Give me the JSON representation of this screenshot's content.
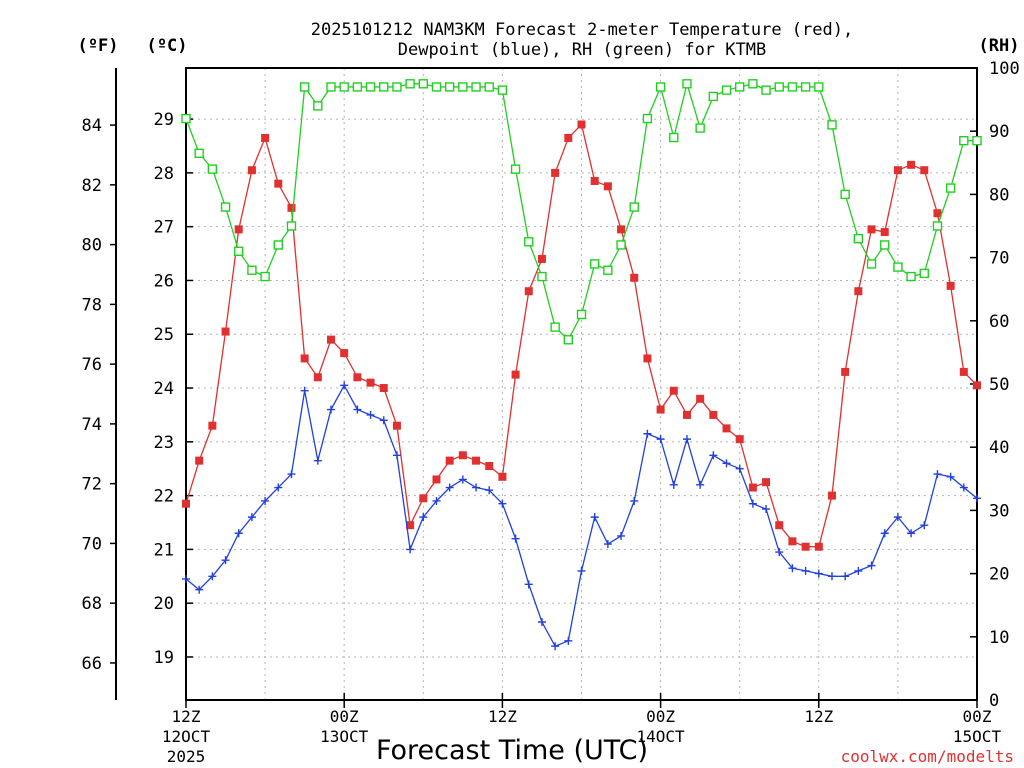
{
  "chart_data": {
    "type": "line",
    "title_line1": "2025101212 NAM3KM Forecast 2-meter Temperature (red),",
    "title_line2": "Dewpoint (blue), RH (green) for KTMB",
    "xlabel": "Forecast Time (UTC)",
    "credit": "coolwx.com/modelts",
    "axis_units": {
      "fahrenheit": "(ºF)",
      "celsius": "(ºC)",
      "rh": "(RH)"
    },
    "x_ticks": [
      {
        "hour": 0,
        "line1": "12Z",
        "line2": "12OCT",
        "line3": "2025"
      },
      {
        "hour": 12,
        "line1": "00Z",
        "line2": "13OCT",
        "line3": ""
      },
      {
        "hour": 24,
        "line1": "12Z",
        "line2": "",
        "line3": ""
      },
      {
        "hour": 36,
        "line1": "00Z",
        "line2": "14OCT",
        "line3": ""
      },
      {
        "hour": 48,
        "line1": "12Z",
        "line2": "",
        "line3": ""
      },
      {
        "hour": 60,
        "line1": "00Z",
        "line2": "15OCT",
        "line3": ""
      }
    ],
    "x_range_hours": [
      0,
      60
    ],
    "celsius_ticks": [
      "19",
      "20",
      "21",
      "22",
      "23",
      "24",
      "25",
      "26",
      "27",
      "28",
      "29"
    ],
    "fahrenheit_ticks": [
      "66",
      "68",
      "70",
      "72",
      "74",
      "76",
      "78",
      "80",
      "82",
      "84"
    ],
    "rh_ticks": [
      "0",
      "10",
      "20",
      "30",
      "40",
      "50",
      "60",
      "70",
      "80",
      "90",
      "100"
    ],
    "celsius_range": [
      18.2,
      29.95
    ],
    "rh_range": [
      0,
      100
    ],
    "colors": {
      "temperature": "#e03030",
      "dewpoint": "#2040e0",
      "rh": "#20d020",
      "credit": "#e03030"
    },
    "series": [
      {
        "name": "Temperature (°C)",
        "values": [
          21.85,
          22.65,
          23.3,
          25.05,
          26.95,
          28.05,
          28.65,
          27.8,
          27.35,
          24.55,
          24.2,
          24.9,
          24.65,
          24.2,
          24.1,
          24.0,
          23.3,
          21.45,
          21.95,
          22.3,
          22.65,
          22.75,
          22.65,
          22.55,
          22.35,
          24.25,
          25.8,
          26.4,
          28.0,
          28.65,
          28.9,
          27.85,
          27.75,
          26.95,
          26.05,
          24.55,
          23.6,
          23.95,
          23.5,
          23.8,
          23.5,
          23.25,
          23.05,
          22.15,
          22.25,
          21.45,
          21.15,
          21.05,
          21.05,
          22.0,
          24.3,
          25.8,
          26.95,
          26.9,
          28.05,
          28.15,
          28.05,
          27.25,
          25.9,
          24.3,
          24.05
        ]
      },
      {
        "name": "Dewpoint (°C)",
        "values": [
          20.45,
          20.25,
          20.5,
          20.8,
          21.3,
          21.6,
          21.9,
          22.15,
          22.4,
          23.95,
          22.65,
          23.6,
          24.05,
          23.6,
          23.5,
          23.4,
          22.75,
          21.0,
          21.6,
          21.9,
          22.15,
          22.3,
          22.15,
          22.1,
          21.85,
          21.2,
          20.35,
          19.65,
          19.2,
          19.3,
          20.6,
          21.6,
          21.1,
          21.25,
          21.9,
          23.15,
          23.05,
          22.2,
          23.05,
          22.2,
          22.75,
          22.6,
          22.5,
          21.85,
          21.75,
          20.95,
          20.65,
          20.6,
          20.55,
          20.5,
          20.5,
          20.6,
          20.7,
          21.3,
          21.6,
          21.3,
          21.45,
          22.4,
          22.35,
          22.15,
          21.95
        ]
      },
      {
        "name": "RH (%)",
        "values": [
          92,
          86.5,
          84,
          78,
          71,
          68,
          67,
          72,
          75,
          97,
          94,
          97,
          97,
          97,
          97,
          97,
          97,
          97.5,
          97.5,
          97,
          97,
          97,
          97,
          97,
          96.5,
          84,
          72.5,
          67,
          59,
          57,
          61,
          69,
          68,
          72,
          78,
          92,
          97,
          89,
          97.5,
          90.5,
          95.5,
          96.5,
          97,
          97.5,
          96.5,
          97,
          97,
          97,
          97,
          91,
          80,
          73,
          69,
          72,
          68.5,
          67,
          67.5,
          75,
          81,
          88.5,
          88.5
        ]
      }
    ]
  }
}
